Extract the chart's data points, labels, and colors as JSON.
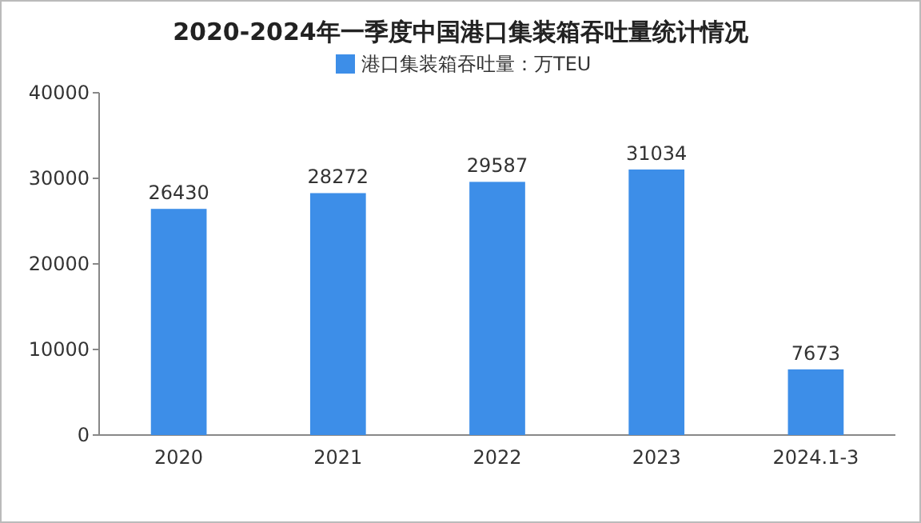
{
  "chart_data": {
    "type": "bar",
    "title": "2020-2024年一季度中国港口集装箱吞吐量统计情况",
    "categories": [
      "2020",
      "2021",
      "2022",
      "2023",
      "2024.1-3"
    ],
    "series": [
      {
        "name": "港口集装箱吞吐量：万TEU",
        "color": "#3d8ee8",
        "values": [
          26430,
          28272,
          29587,
          31034,
          7673
        ]
      }
    ],
    "ylim": [
      0,
      40000
    ],
    "yticks": [
      0,
      10000,
      20000,
      30000,
      40000
    ],
    "grid": false,
    "legend": "top",
    "data_labels": true
  }
}
